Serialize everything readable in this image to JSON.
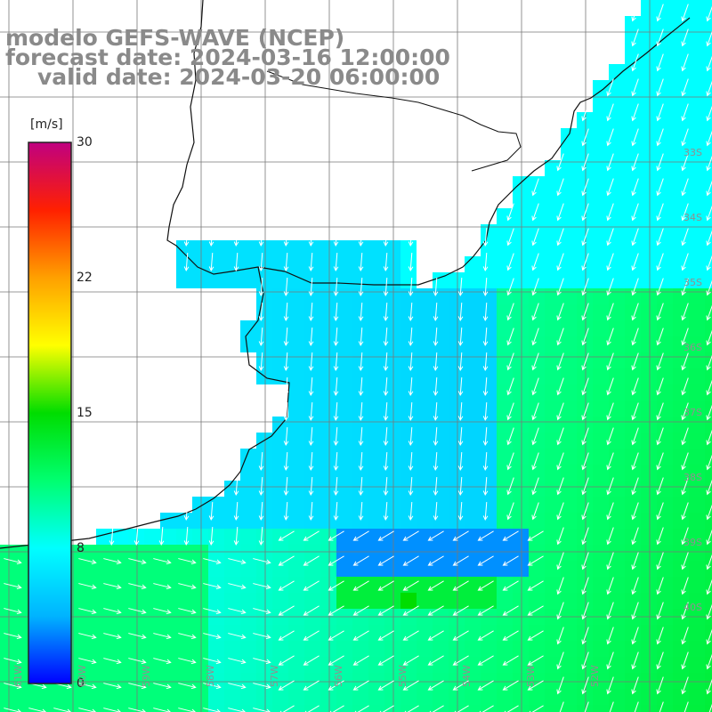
{
  "header": {
    "line1": "modelo GEFS-WAVE (NCEP)",
    "line2": "forecast date: 2024-03-16 12:00:00",
    "line3": "valid date: 2024-03-20 06:00:00"
  },
  "colorbar": {
    "unit": "[m/s]",
    "ticks": [
      "30",
      "22",
      "15",
      "8",
      "0"
    ],
    "tick_values": [
      30,
      22,
      15,
      8,
      0
    ],
    "range": [
      0,
      30
    ],
    "palette": [
      "#0000ff",
      "#00b4ff",
      "#00ffff",
      "#00ff70",
      "#00dd00",
      "#ffff00",
      "#ffa000",
      "#ff2000",
      "#c00080"
    ]
  },
  "map": {
    "variable": "wind speed and direction",
    "gridline_color": "#787878",
    "latitude_labels": [
      "33S",
      "34S",
      "35S",
      "36S",
      "37S",
      "38S",
      "39S",
      "40S"
    ],
    "longitude_labels": [
      "61W",
      "60W",
      "59W",
      "58W",
      "57W",
      "56W",
      "55W",
      "54W",
      "53W",
      "52W"
    ],
    "dominant_wind_direction": "from north (arrows pointing south)",
    "regions": [
      {
        "name": "open ocean east",
        "speed_ms": 9
      },
      {
        "name": "coastal belt",
        "speed_ms": 6
      },
      {
        "name": "calm band",
        "speed_ms": 3
      },
      {
        "name": "peak south of calm band",
        "speed_ms": 15
      }
    ]
  }
}
